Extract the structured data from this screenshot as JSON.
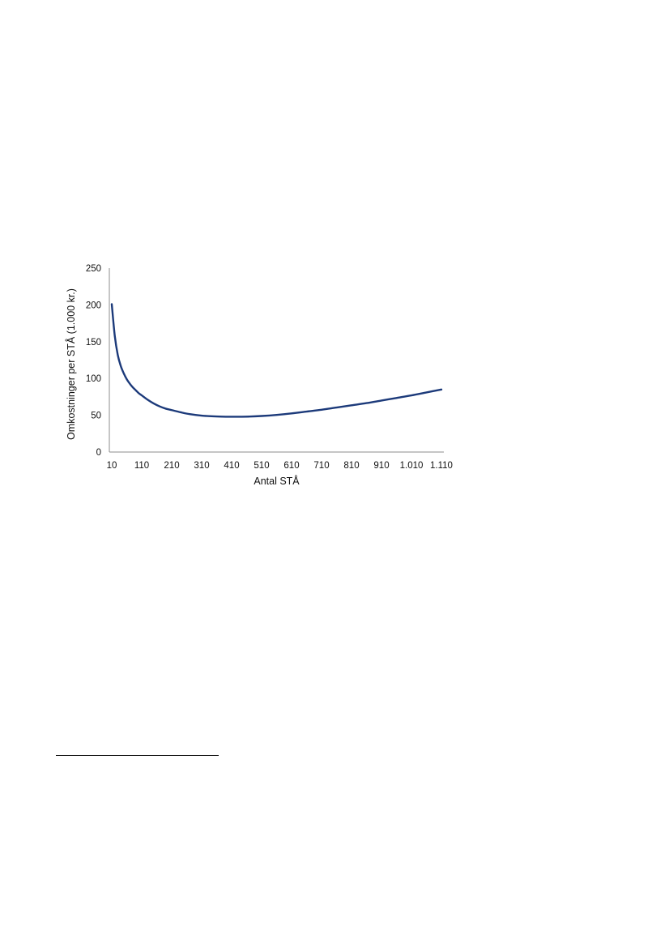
{
  "chart_data": {
    "type": "line",
    "title": "",
    "xlabel": "Antal STÅ",
    "ylabel": "Omkostninger per STÅ (1.000 kr.)",
    "x_tick_labels": [
      "10",
      "110",
      "210",
      "310",
      "410",
      "510",
      "610",
      "710",
      "810",
      "910",
      "1.010",
      "1.110"
    ],
    "y_tick_labels": [
      "0",
      "50",
      "100",
      "150",
      "200",
      "250"
    ],
    "xlim": [
      10,
      1110
    ],
    "ylim": [
      0,
      250
    ],
    "grid": false,
    "legend": "none",
    "series": [
      {
        "color": "#1c3a7a",
        "x": [
          10,
          20,
          30,
          40,
          50,
          60,
          70,
          80,
          90,
          100,
          110,
          130,
          150,
          170,
          190,
          210,
          240,
          270,
          310,
          350,
          390,
          410,
          440,
          470,
          510,
          560,
          610,
          660,
          710,
          760,
          810,
          860,
          910,
          960,
          1010,
          1060,
          1110
        ],
        "y": [
          201,
          158,
          132,
          117,
          107,
          99,
          93,
          88,
          84,
          80,
          77,
          71,
          66,
          62,
          59,
          57,
          54,
          51.5,
          49.5,
          48.5,
          48,
          48,
          48,
          48.2,
          49,
          50.5,
          52.5,
          55,
          57.5,
          60.5,
          63.5,
          66.5,
          70,
          73.5,
          77,
          81,
          85
        ]
      }
    ]
  },
  "footnote": {
    "rule_color": "#000000"
  }
}
